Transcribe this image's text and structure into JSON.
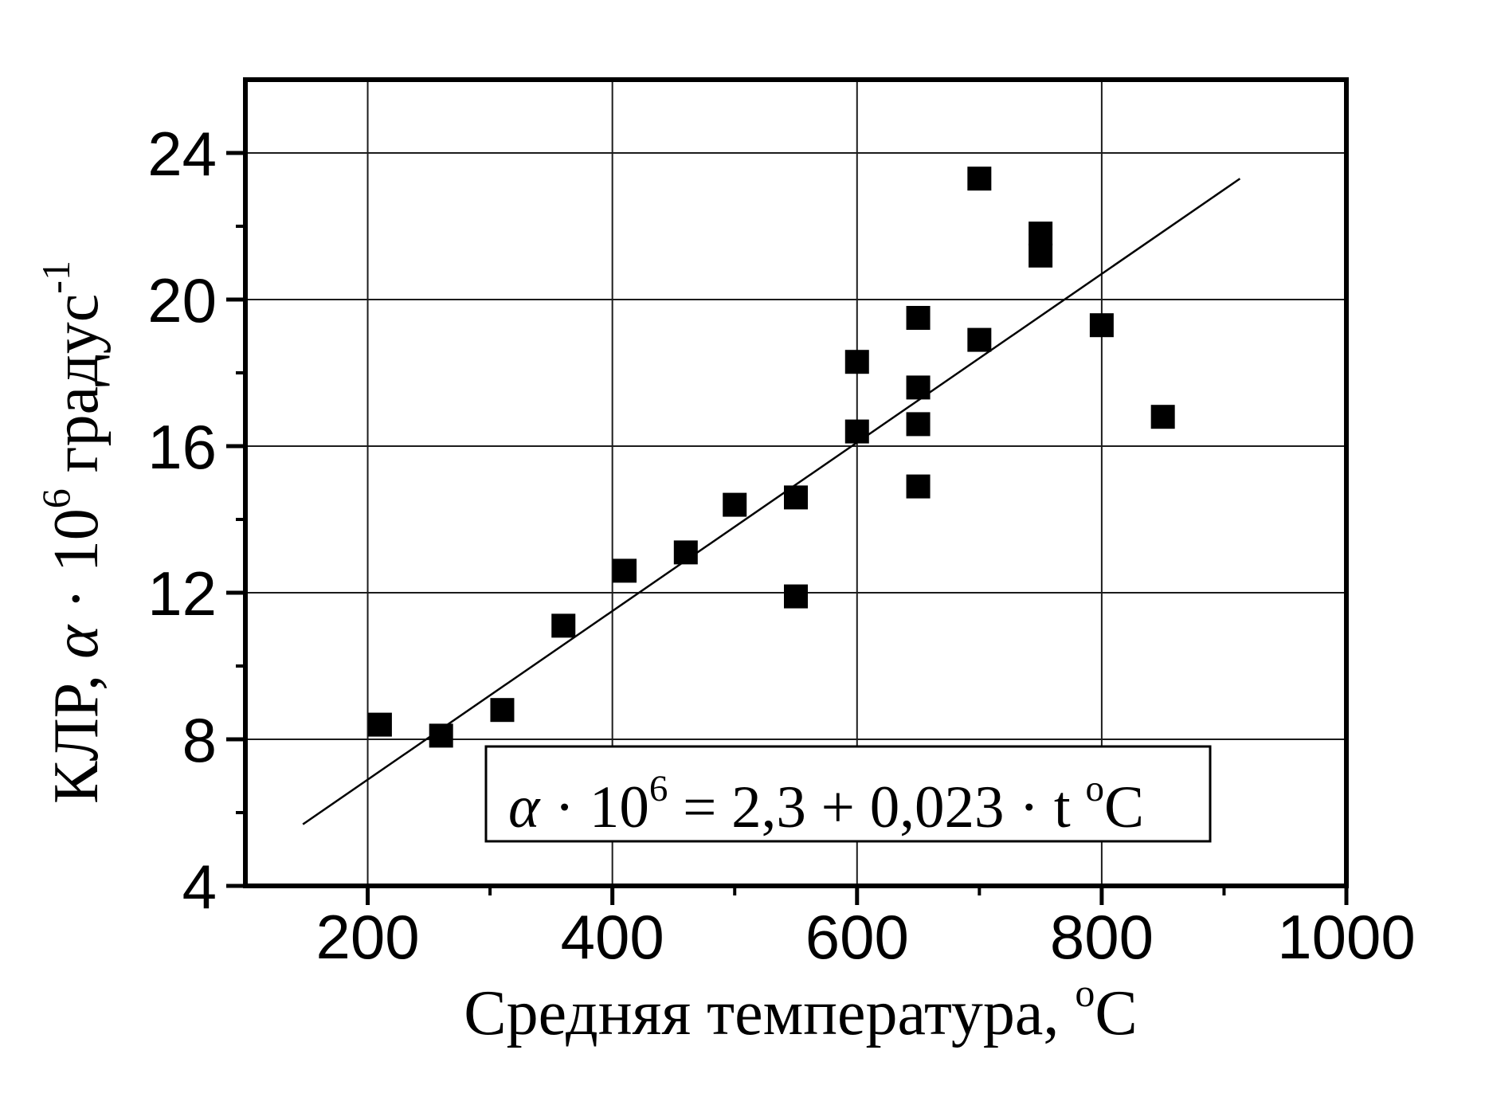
{
  "figure": {
    "background": "#ffffff",
    "ink_color": "#000000"
  },
  "chart_data": {
    "type": "scatter",
    "title": "",
    "xlabel_parts": [
      {
        "t": "Средняя  температура, "
      },
      {
        "t": "o",
        "sup": true
      },
      {
        "t": "C"
      }
    ],
    "ylabel_parts": [
      {
        "t": "КЛР, "
      },
      {
        "t": "α",
        "italic": true
      },
      {
        "t": " · 10"
      },
      {
        "t": "6",
        "sup": true
      },
      {
        "t": " градус"
      },
      {
        "t": "-1",
        "sup": true
      }
    ],
    "xlim": [
      100,
      1000
    ],
    "ylim": [
      4,
      26
    ],
    "grid": true,
    "xticks": {
      "major": [
        200,
        400,
        600,
        800,
        1000
      ],
      "labels": [
        "200",
        "400",
        "600",
        "800",
        "1000"
      ],
      "minor": [
        300,
        500,
        700,
        900
      ]
    },
    "yticks": {
      "major": [
        4,
        8,
        12,
        16,
        20,
        24
      ],
      "labels": [
        "4",
        "8",
        "12",
        "16",
        "20",
        "24"
      ],
      "minor": [
        6,
        10,
        14,
        18,
        22
      ]
    },
    "marker": {
      "shape": "square",
      "color": "#000000",
      "size": 30
    },
    "points": [
      [
        210,
        8.4
      ],
      [
        260,
        8.1
      ],
      [
        310,
        8.8
      ],
      [
        360,
        11.1
      ],
      [
        410,
        12.6
      ],
      [
        460,
        13.1
      ],
      [
        500,
        14.4
      ],
      [
        550,
        11.9
      ],
      [
        550,
        14.6
      ],
      [
        600,
        16.4
      ],
      [
        600,
        18.3
      ],
      [
        650,
        14.9
      ],
      [
        650,
        16.6
      ],
      [
        650,
        17.6
      ],
      [
        650,
        19.5
      ],
      [
        700,
        18.9
      ],
      [
        700,
        23.3
      ],
      [
        750,
        21.2
      ],
      [
        750,
        21.8
      ],
      [
        800,
        19.3
      ],
      [
        850,
        16.8
      ]
    ],
    "fit_line": {
      "intercept": 2.3,
      "slope": 0.023,
      "t_start": 147,
      "t_end": 913
    },
    "equation_parts": [
      {
        "t": "α",
        "italic": true
      },
      {
        "t": " · 10"
      },
      {
        "t": "6",
        "sup": true
      },
      {
        "t": " = 2,3 + 0,023 · t "
      },
      {
        "t": "o",
        "sup": true
      },
      {
        "t": "C"
      }
    ]
  }
}
